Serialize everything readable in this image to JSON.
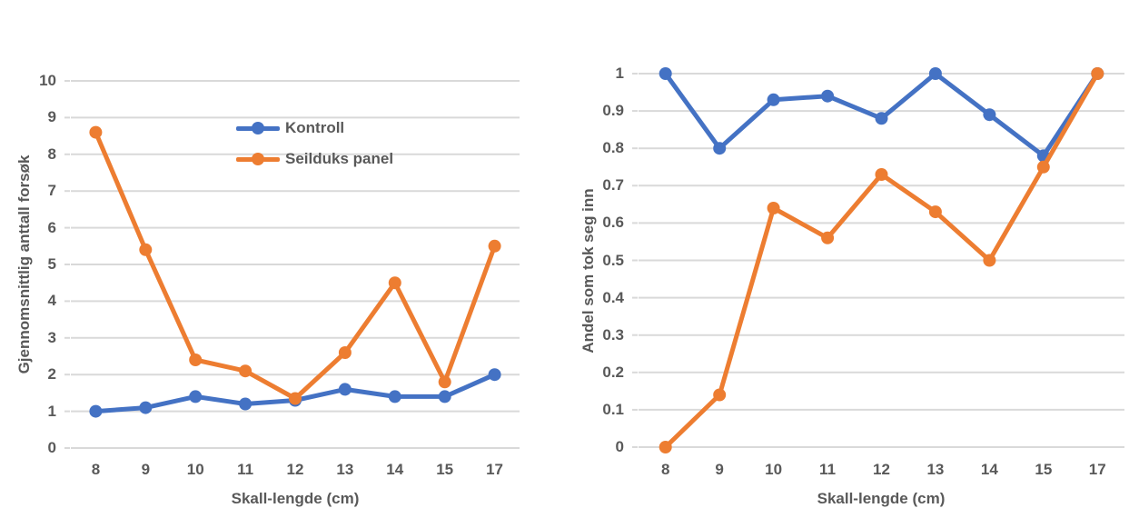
{
  "colors": {
    "kontroll": "#4472C4",
    "seilduks_panel": "#ED7D31",
    "gridline": "#D9D9D9",
    "text": "#595959"
  },
  "chart_data": [
    {
      "type": "line",
      "title": "",
      "xlabel": "Skall-lengde (cm)",
      "ylabel": "Gjennomsnittlig anttall forsøk",
      "categories": [
        "8",
        "9",
        "10",
        "11",
        "12",
        "13",
        "14",
        "15",
        "17"
      ],
      "ylim": [
        0,
        10
      ],
      "ytick_values": [
        0,
        1,
        2,
        3,
        4,
        5,
        6,
        7,
        8,
        9,
        10
      ],
      "ytick_labels": [
        "0",
        "1",
        "2",
        "3",
        "4",
        "5",
        "6",
        "7",
        "8",
        "9",
        "10"
      ],
      "grid": true,
      "legend_position": "inside-top-center",
      "series": [
        {
          "name": "Kontroll",
          "color": "#4472C4",
          "values": [
            1.0,
            1.1,
            1.4,
            1.2,
            1.3,
            1.6,
            1.4,
            1.4,
            2.0
          ]
        },
        {
          "name": "Seilduks panel",
          "color": "#ED7D31",
          "values": [
            8.6,
            5.4,
            2.4,
            2.1,
            1.35,
            2.6,
            4.5,
            1.8,
            5.5
          ]
        }
      ]
    },
    {
      "type": "line",
      "title": "",
      "xlabel": "Skall-lengde (cm)",
      "ylabel": "Andel som tok seg inn",
      "categories": [
        "8",
        "9",
        "10",
        "11",
        "12",
        "13",
        "14",
        "15",
        "17"
      ],
      "ylim": [
        0,
        1
      ],
      "ytick_values": [
        0,
        0.1,
        0.2,
        0.3,
        0.4,
        0.5,
        0.6,
        0.7,
        0.8,
        0.9,
        1
      ],
      "ytick_labels": [
        "0",
        "0.1",
        "0.2",
        "0.3",
        "0.4",
        "0.5",
        "0.6",
        "0.7",
        "0.8",
        "0.9",
        "1"
      ],
      "grid": true,
      "legend_position": "none",
      "series": [
        {
          "name": "Kontroll",
          "color": "#4472C4",
          "values": [
            1.0,
            0.8,
            0.93,
            0.94,
            0.88,
            1.0,
            0.89,
            0.78,
            1.0
          ]
        },
        {
          "name": "Seilduks panel",
          "color": "#ED7D31",
          "values": [
            0.0,
            0.14,
            0.64,
            0.56,
            0.73,
            0.63,
            0.5,
            0.75,
            1.0
          ]
        }
      ]
    }
  ]
}
